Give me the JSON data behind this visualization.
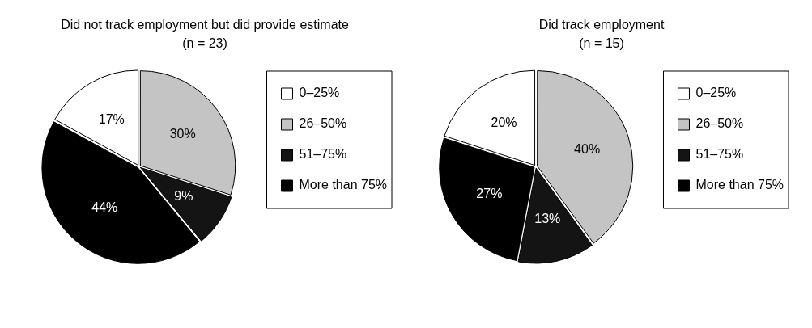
{
  "chart_data": [
    {
      "type": "pie",
      "title": "Did not track employment but did provide estimate",
      "subtitle": "(n = 23)",
      "categories": [
        "0–25%",
        "26–50%",
        "51–75%",
        "More than 75%"
      ],
      "values": [
        17,
        30,
        9,
        44
      ],
      "value_labels": [
        "17%",
        "30%",
        "9%",
        "44%"
      ],
      "colors": [
        "#ffffff",
        "#c4c4c4",
        "#141414",
        "#000000"
      ],
      "legend": "right"
    },
    {
      "type": "pie",
      "title": "Did track employment",
      "subtitle": "(n = 15)",
      "categories": [
        "0–25%",
        "26–50%",
        "51–75%",
        "More than 75%"
      ],
      "values": [
        20,
        40,
        13,
        27
      ],
      "value_labels": [
        "20%",
        "40%",
        "13%",
        "27%"
      ],
      "colors": [
        "#ffffff",
        "#c4c4c4",
        "#141414",
        "#000000"
      ],
      "legend": "right"
    }
  ]
}
